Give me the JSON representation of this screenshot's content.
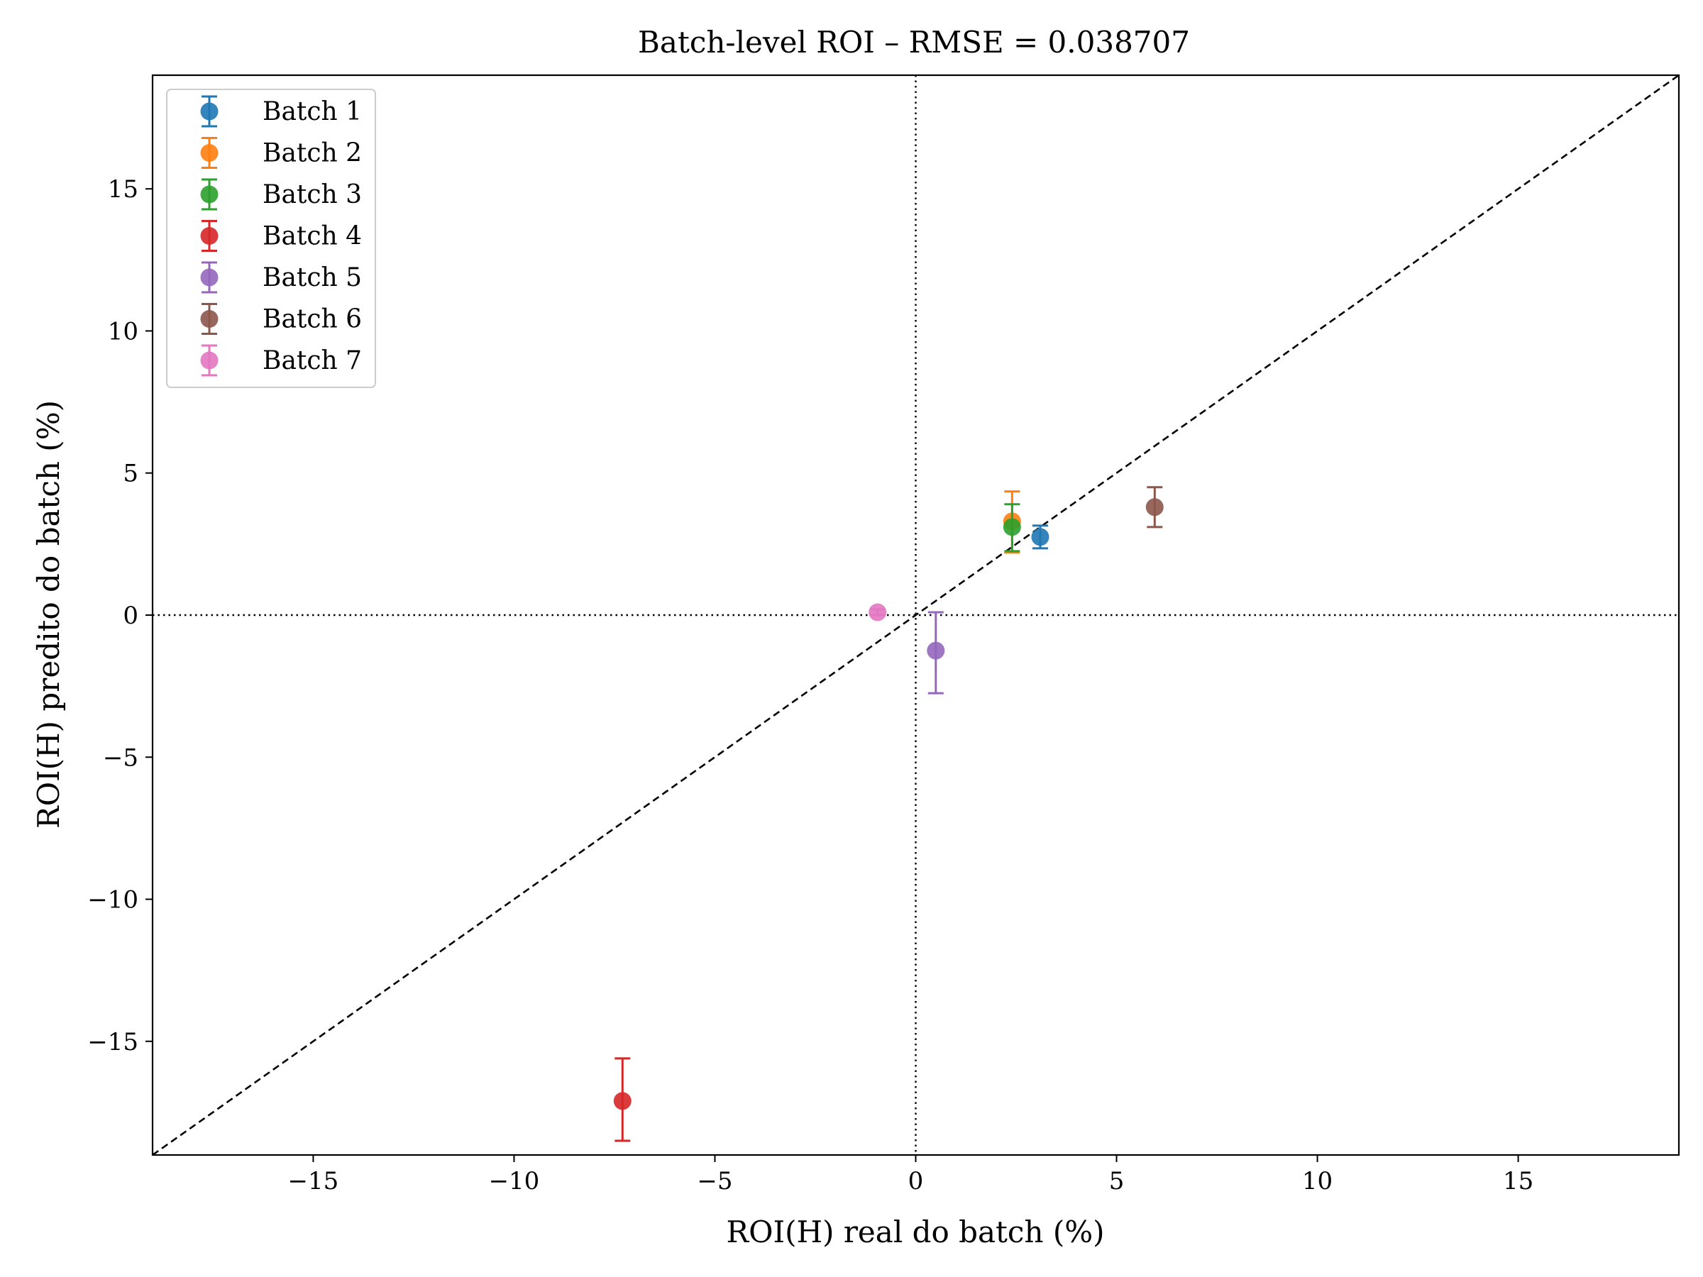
{
  "chart_data": {
    "type": "scatter",
    "title": "Batch-level ROI – RMSE = 0.038707",
    "xlabel": "ROI(H) real do batch (%)",
    "ylabel": "ROI(H) predito do batch (%)",
    "xlim": [
      -19,
      19
    ],
    "ylim": [
      -19,
      19
    ],
    "xticks": [
      -15,
      -10,
      -5,
      0,
      5,
      10,
      15
    ],
    "yticks": [
      -15,
      -10,
      -5,
      0,
      5,
      10,
      15
    ],
    "tick_labels": [
      "−15",
      "−10",
      "−5",
      "0",
      "5",
      "10",
      "15"
    ],
    "grid": false,
    "legend_position": "upper-left",
    "reference_lines": {
      "identity_dashed": true,
      "zero_dotted": true
    },
    "series": [
      {
        "name": "Batch 1",
        "color": "#1f77b4",
        "x": 3.1,
        "y": 2.75,
        "y_lower": 2.35,
        "y_upper": 3.15
      },
      {
        "name": "Batch 2",
        "color": "#ff7f0e",
        "x": 2.4,
        "y": 3.3,
        "y_lower": 2.2,
        "y_upper": 4.35
      },
      {
        "name": "Batch 3",
        "color": "#2ca02c",
        "x": 2.4,
        "y": 3.1,
        "y_lower": 2.25,
        "y_upper": 3.9
      },
      {
        "name": "Batch 4",
        "color": "#d62728",
        "x": -7.3,
        "y": -17.1,
        "y_lower": -18.5,
        "y_upper": -15.6
      },
      {
        "name": "Batch 5",
        "color": "#9467bd",
        "x": 0.5,
        "y": -1.25,
        "y_lower": -2.75,
        "y_upper": 0.1
      },
      {
        "name": "Batch 6",
        "color": "#8c564b",
        "x": 5.95,
        "y": 3.8,
        "y_lower": 3.1,
        "y_upper": 4.5
      },
      {
        "name": "Batch 7",
        "color": "#e377c2",
        "x": -0.95,
        "y": 0.1,
        "y_lower": 0.0,
        "y_upper": 0.2
      }
    ]
  }
}
